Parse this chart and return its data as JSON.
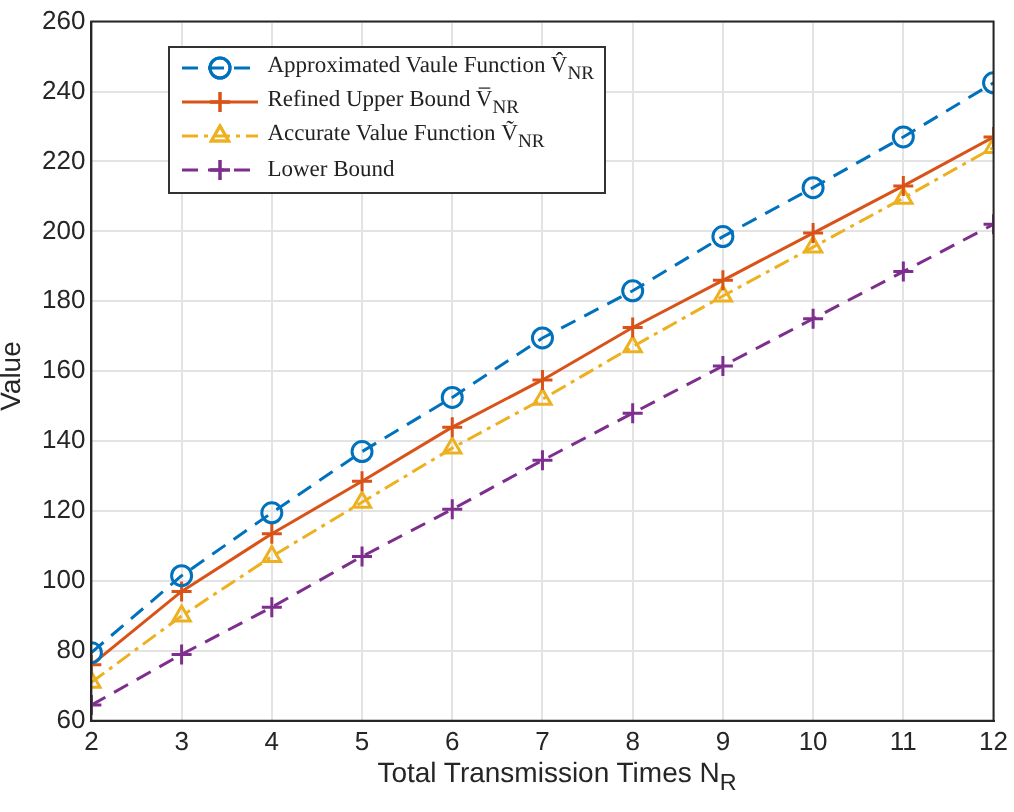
{
  "chart_data": {
    "type": "line",
    "xlabel": "Total Transmission Times N$_{R}$",
    "ylabel": "Value",
    "x": [
      2,
      3,
      4,
      5,
      6,
      7,
      8,
      9,
      10,
      11,
      12
    ],
    "series": [
      {
        "name": "Approximated Vaule Function V̂$_{NR}$",
        "color": "#0072bd",
        "marker": "circle",
        "line_style": "dashed",
        "values": [
          79.5,
          101.5,
          119.5,
          137,
          152.5,
          169.5,
          183,
          198.5,
          212.5,
          227,
          242.5
        ]
      },
      {
        "name": "Refined Upper Bound V̅$_{NR}$",
        "color": "#d95319",
        "marker": "cross",
        "line_style": "solid",
        "values": [
          76,
          97,
          113.5,
          128.5,
          144,
          157.5,
          172.5,
          186,
          199.5,
          213,
          227
        ]
      },
      {
        "name": "Accurate Value Function Ṽ$_{NR}$",
        "color": "#edb120",
        "marker": "triangle",
        "line_style": "dashdot",
        "values": [
          71,
          90,
          107,
          122.5,
          138,
          152,
          167,
          181.5,
          195.5,
          209.5,
          224
        ]
      },
      {
        "name": "Lower Bound",
        "color": "#7e2f8e",
        "marker": "cross",
        "line_style": "dashed",
        "values": [
          64.5,
          79,
          92.5,
          107,
          120.5,
          134.5,
          148,
          161.5,
          175,
          188.5,
          202
        ]
      }
    ],
    "xlim": [
      2,
      12
    ],
    "xticks": [
      2,
      3,
      4,
      5,
      6,
      7,
      8,
      9,
      10,
      11,
      12
    ],
    "ylim": [
      60,
      260
    ],
    "yticks": [
      60,
      80,
      100,
      120,
      140,
      160,
      180,
      200,
      220,
      240,
      260
    ],
    "grid": true,
    "legend": "top left"
  }
}
